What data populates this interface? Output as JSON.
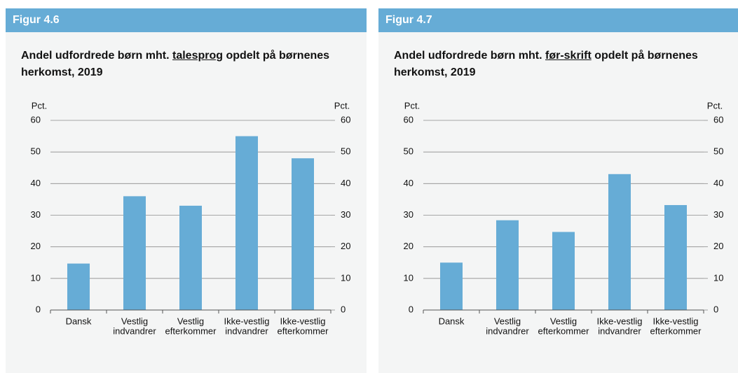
{
  "chart_data": [
    {
      "type": "bar",
      "figure": "Figur 4.6",
      "title": {
        "before": "Andel udfordrede børn mht. ",
        "underlined": "talesprog",
        "after": " opdelt på børnenes herkomst, 2019"
      },
      "ylabel": "Pct.",
      "y2label": "Pct.",
      "categories": [
        [
          "Dansk"
        ],
        [
          "Vestlig",
          "indvandrer"
        ],
        [
          "Vestlig",
          "efterkommer"
        ],
        [
          "Ikke-vestlig",
          "indvandrer"
        ],
        [
          "Ikke-vestlig",
          "efterkommer"
        ]
      ],
      "values": [
        14.7,
        36,
        33,
        55,
        48
      ],
      "color": "#66acd6",
      "ylim": [
        0,
        60
      ],
      "yticks": [
        0,
        10,
        20,
        30,
        40,
        50,
        60
      ],
      "y2lim": [
        0,
        60
      ],
      "y2ticks": [
        0,
        10,
        20,
        30,
        40,
        50,
        60
      ],
      "grid": true
    },
    {
      "type": "bar",
      "figure": "Figur 4.7",
      "title": {
        "before": "Andel udfordrede børn mht. ",
        "underlined": "før-skrift",
        "after": " opdelt på børnenes herkomst, 2019"
      },
      "ylabel": "Pct.",
      "y2label": "Pct.",
      "categories": [
        [
          "Dansk"
        ],
        [
          "Vestlig",
          "indvandrer"
        ],
        [
          "Vestlig",
          "efterkommer"
        ],
        [
          "Ikke-vestlig",
          "indvandrer"
        ],
        [
          "Ikke-vestlig",
          "efterkommer"
        ]
      ],
      "values": [
        15,
        28.4,
        24.7,
        43,
        33.2
      ],
      "color": "#66acd6",
      "ylim": [
        0,
        60
      ],
      "yticks": [
        0,
        10,
        20,
        30,
        40,
        50,
        60
      ],
      "y2lim": [
        0,
        60
      ],
      "y2ticks": [
        0,
        10,
        20,
        30,
        40,
        50,
        60
      ],
      "grid": true
    }
  ]
}
